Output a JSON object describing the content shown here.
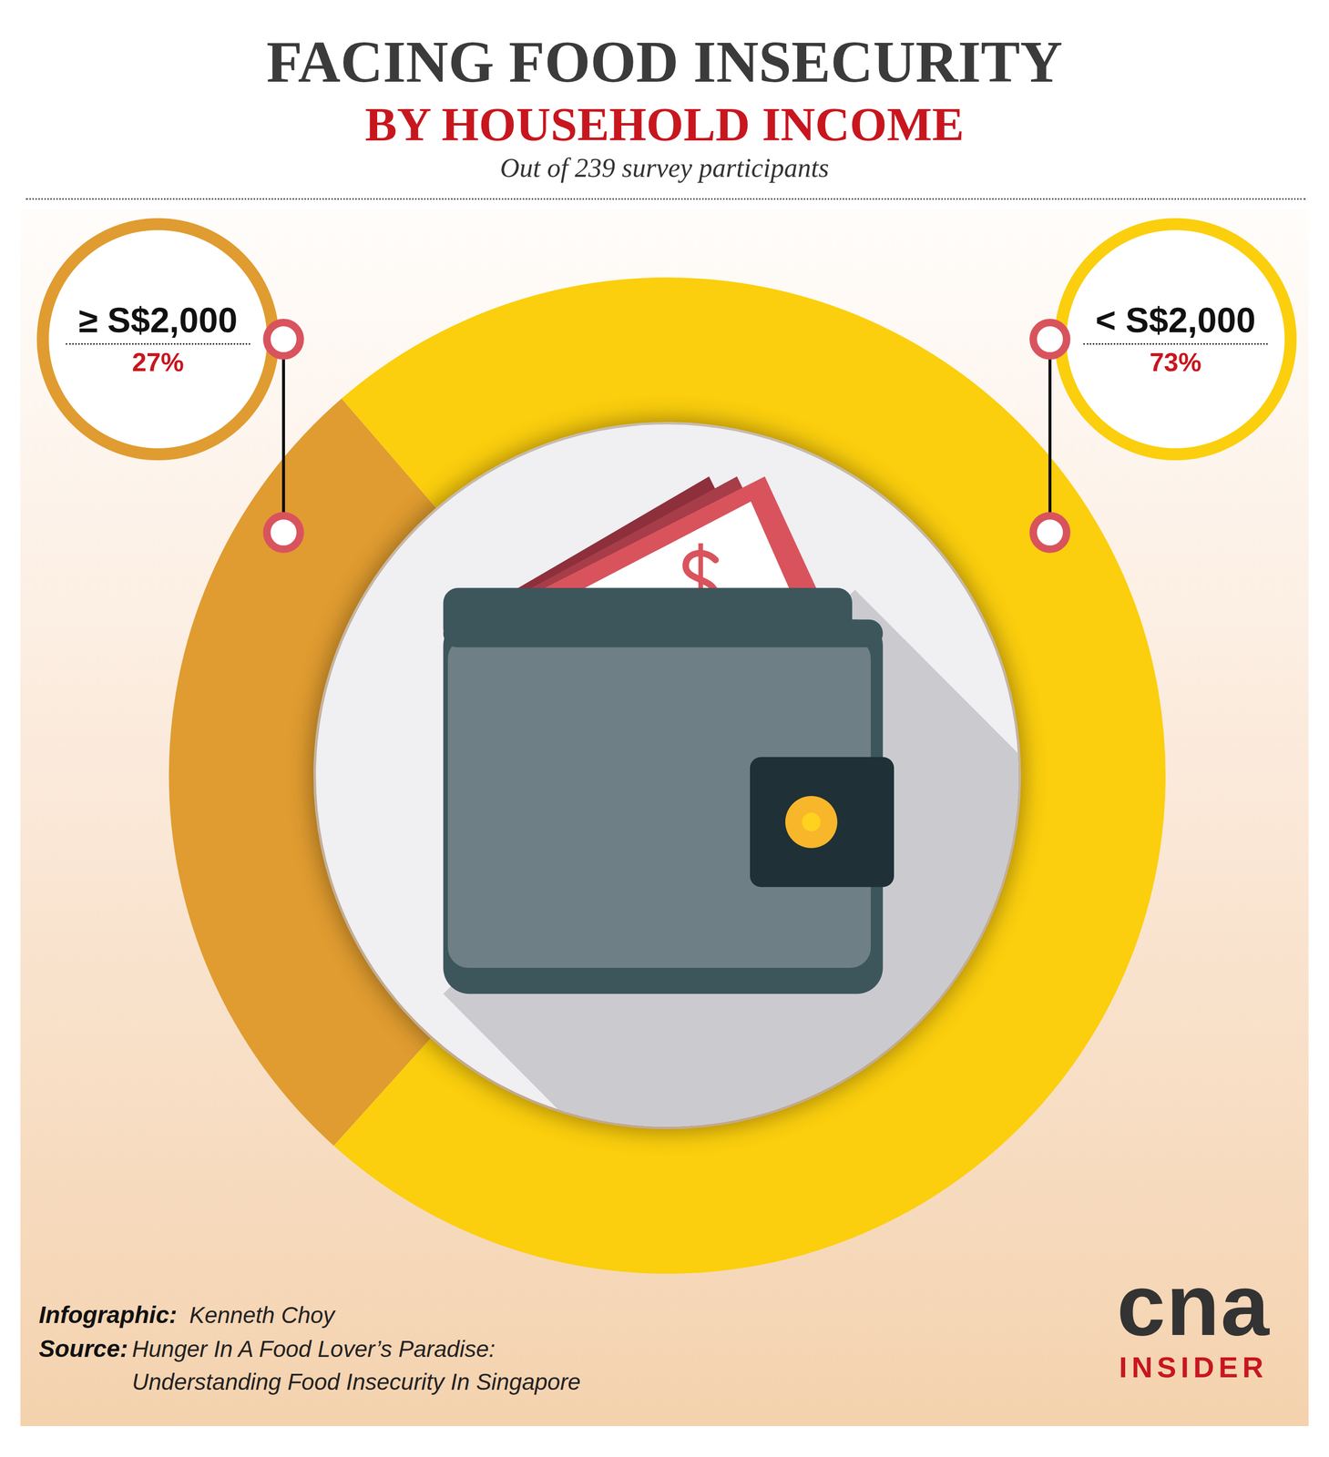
{
  "chart_data": {
    "type": "doughnut",
    "title": "FACING FOOD INSECURITY",
    "subtitle": "BY HOUSEHOLD INCOME",
    "annotations": [
      "Out of 239 survey participants"
    ],
    "categories": [
      "≥ S$2,000",
      "< S$2,000"
    ],
    "values": [
      27,
      73
    ],
    "value_labels": [
      "27%",
      "73%"
    ],
    "colors": [
      "#e09c30",
      "#fbcf0d"
    ],
    "data_labels": true,
    "legend": false
  },
  "credits": [
    {
      "label": "Infographic:",
      "text": [
        "Kenneth Choy"
      ]
    },
    {
      "label": "Source:",
      "text": [
        "Hunger In A Food Lover’s Paradise:",
        "Understanding Food Insecurity In Singapore"
      ]
    }
  ],
  "logo": {
    "name": "cna",
    "sub": "INSIDER"
  }
}
